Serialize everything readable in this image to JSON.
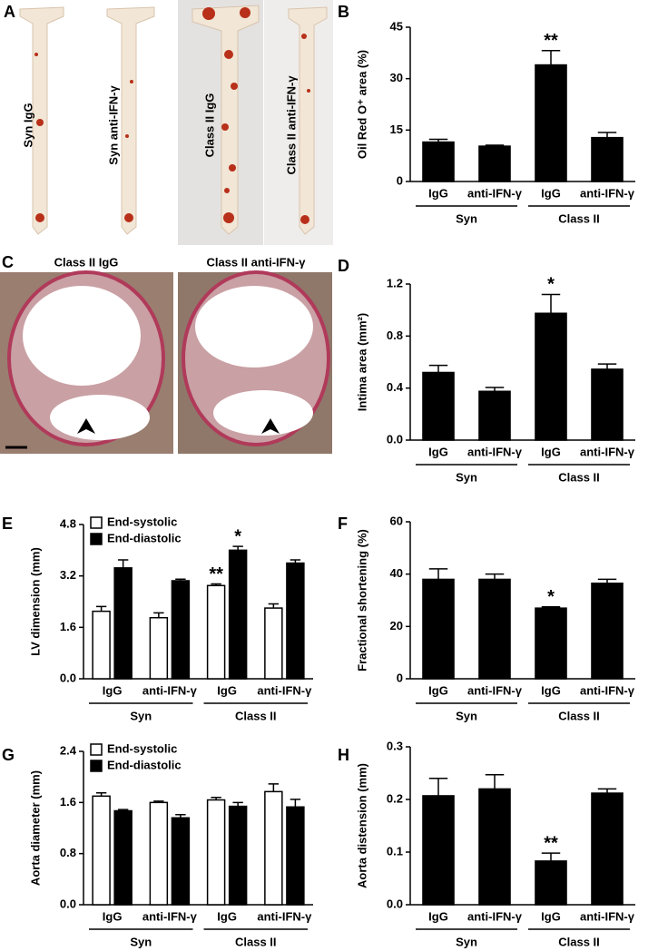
{
  "figure": {
    "images": [
      {
        "label": "A",
        "captions": [
          "Syn IgG",
          "Syn anti-IFN-γ",
          "Class II IgG",
          "Class II anti-IFN-γ"
        ]
      },
      {
        "label": "C",
        "captions": [
          "Class II IgG",
          "Class II anti-IFN-γ"
        ]
      }
    ]
  },
  "chart_data": [
    {
      "type": "bar",
      "panel": "B",
      "ylabel": "Oil Red O⁺ area (%)",
      "categories": [
        "IgG",
        "anti-IFN-γ",
        "IgG",
        "anti-IFN-γ"
      ],
      "groups": [
        "Syn",
        "Class II"
      ],
      "color": "#000000",
      "values": [
        11.5,
        10.3,
        34,
        12.8
      ],
      "errors": [
        0.8,
        0.3,
        4.2,
        1.5
      ],
      "significance": [
        null,
        null,
        "**",
        null
      ],
      "ylim": [
        0,
        45
      ],
      "yticks": [
        0,
        15,
        30,
        45
      ]
    },
    {
      "type": "bar",
      "panel": "D",
      "ylabel": "Intima area (mm²)",
      "categories": [
        "IgG",
        "anti-IFN-γ",
        "IgG",
        "anti-IFN-γ"
      ],
      "groups": [
        "Syn",
        "Class II"
      ],
      "color": "#000000",
      "values": [
        0.52,
        0.375,
        0.975,
        0.545
      ],
      "errors": [
        0.055,
        0.03,
        0.145,
        0.04
      ],
      "significance": [
        null,
        null,
        "*",
        null
      ],
      "ylim": [
        0,
        1.2
      ],
      "yticks": [
        {
          "value": 0,
          "label": "0.0"
        },
        0.4,
        0.8,
        1.2
      ]
    },
    {
      "type": "bar",
      "panel": "E",
      "ylabel": "LV dimension (mm)",
      "categories": [
        "IgG",
        "anti-IFN-γ",
        "IgG",
        "anti-IFN-γ"
      ],
      "groups": [
        "Syn",
        "Class II"
      ],
      "legend": "upper left",
      "series": [
        {
          "name": "End-systolic",
          "color": "#ffffff",
          "values": [
            2.1,
            1.9,
            2.9,
            2.2
          ],
          "errors": [
            0.15,
            0.15,
            0.05,
            0.13
          ],
          "significance": [
            null,
            null,
            "**",
            null
          ]
        },
        {
          "name": "End-diastolic",
          "color": "#000000",
          "values": [
            3.45,
            3.05,
            4.0,
            3.6
          ],
          "errors": [
            0.25,
            0.05,
            0.12,
            0.1
          ],
          "significance": [
            null,
            null,
            "*",
            null
          ]
        }
      ],
      "ylim": [
        0,
        4.8
      ],
      "yticks": [
        {
          "value": 0,
          "label": "0.0"
        },
        1.6,
        3.2,
        4.8
      ]
    },
    {
      "type": "bar",
      "panel": "F",
      "ylabel": "Fractional shortening (%)",
      "categories": [
        "IgG",
        "anti-IFN-γ",
        "IgG",
        "anti-IFN-γ"
      ],
      "groups": [
        "Syn",
        "Class II"
      ],
      "color": "#000000",
      "values": [
        38,
        38,
        27,
        36.5
      ],
      "errors": [
        4,
        2,
        0.5,
        1.5
      ],
      "significance": [
        null,
        null,
        "*",
        null
      ],
      "ylim": [
        0,
        60
      ],
      "yticks": [
        0,
        20,
        40,
        60
      ]
    },
    {
      "type": "bar",
      "panel": "G",
      "ylabel": "Aorta diameter (mm)",
      "categories": [
        "IgG",
        "anti-IFN-γ",
        "IgG",
        "anti-IFN-γ"
      ],
      "groups": [
        "Syn",
        "Class II"
      ],
      "legend": "upper left",
      "series": [
        {
          "name": "End-systolic",
          "color": "#ffffff",
          "values": [
            1.7,
            1.6,
            1.64,
            1.77
          ],
          "errors": [
            0.05,
            0.02,
            0.04,
            0.12
          ]
        },
        {
          "name": "End-diastolic",
          "color": "#000000",
          "values": [
            1.47,
            1.36,
            1.54,
            1.53
          ],
          "errors": [
            0.02,
            0.05,
            0.06,
            0.12
          ]
        }
      ],
      "ylim": [
        0,
        2.4
      ],
      "yticks": [
        {
          "value": 0,
          "label": "0.0"
        },
        0.8,
        1.6,
        2.4
      ]
    },
    {
      "type": "bar",
      "panel": "H",
      "ylabel": "Aorta distension (mm)",
      "categories": [
        "IgG",
        "anti-IFN-γ",
        "IgG",
        "anti-IFN-γ"
      ],
      "groups": [
        "Syn",
        "Class II"
      ],
      "color": "#000000",
      "values": [
        0.207,
        0.22,
        0.083,
        0.212
      ],
      "errors": [
        0.033,
        0.027,
        0.015,
        0.008
      ],
      "significance": [
        null,
        null,
        "**",
        null
      ],
      "ylim": [
        0,
        0.3
      ],
      "yticks": [
        {
          "value": 0,
          "label": "0.0"
        },
        0.1,
        0.2,
        0.3
      ]
    }
  ]
}
